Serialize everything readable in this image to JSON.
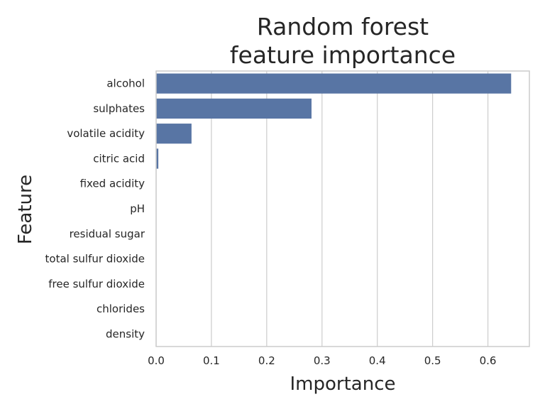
{
  "chart_data": {
    "type": "bar",
    "orientation": "horizontal",
    "title_lines": [
      "Random forest",
      "feature importance"
    ],
    "xlabel": "Importance",
    "ylabel": "Feature",
    "categories": [
      "alcohol",
      "sulphates",
      "volatile acidity",
      "citric acid",
      "fixed acidity",
      "pH",
      "residual sugar",
      "total sulfur dioxide",
      "free sulfur dioxide",
      "chlorides",
      "density"
    ],
    "values": [
      0.642,
      0.281,
      0.064,
      0.004,
      0,
      0,
      0,
      0,
      0,
      0,
      0
    ],
    "xlim": [
      0,
      0.675
    ],
    "xticks": [
      0.0,
      0.1,
      0.2,
      0.3,
      0.4,
      0.5,
      0.6
    ],
    "xtick_labels": [
      "0.0",
      "0.1",
      "0.2",
      "0.3",
      "0.4",
      "0.5",
      "0.6"
    ],
    "grid": "vertical",
    "bar_color": "#5875a4",
    "grid_color": "#cccccc",
    "text_color": "#262626"
  }
}
